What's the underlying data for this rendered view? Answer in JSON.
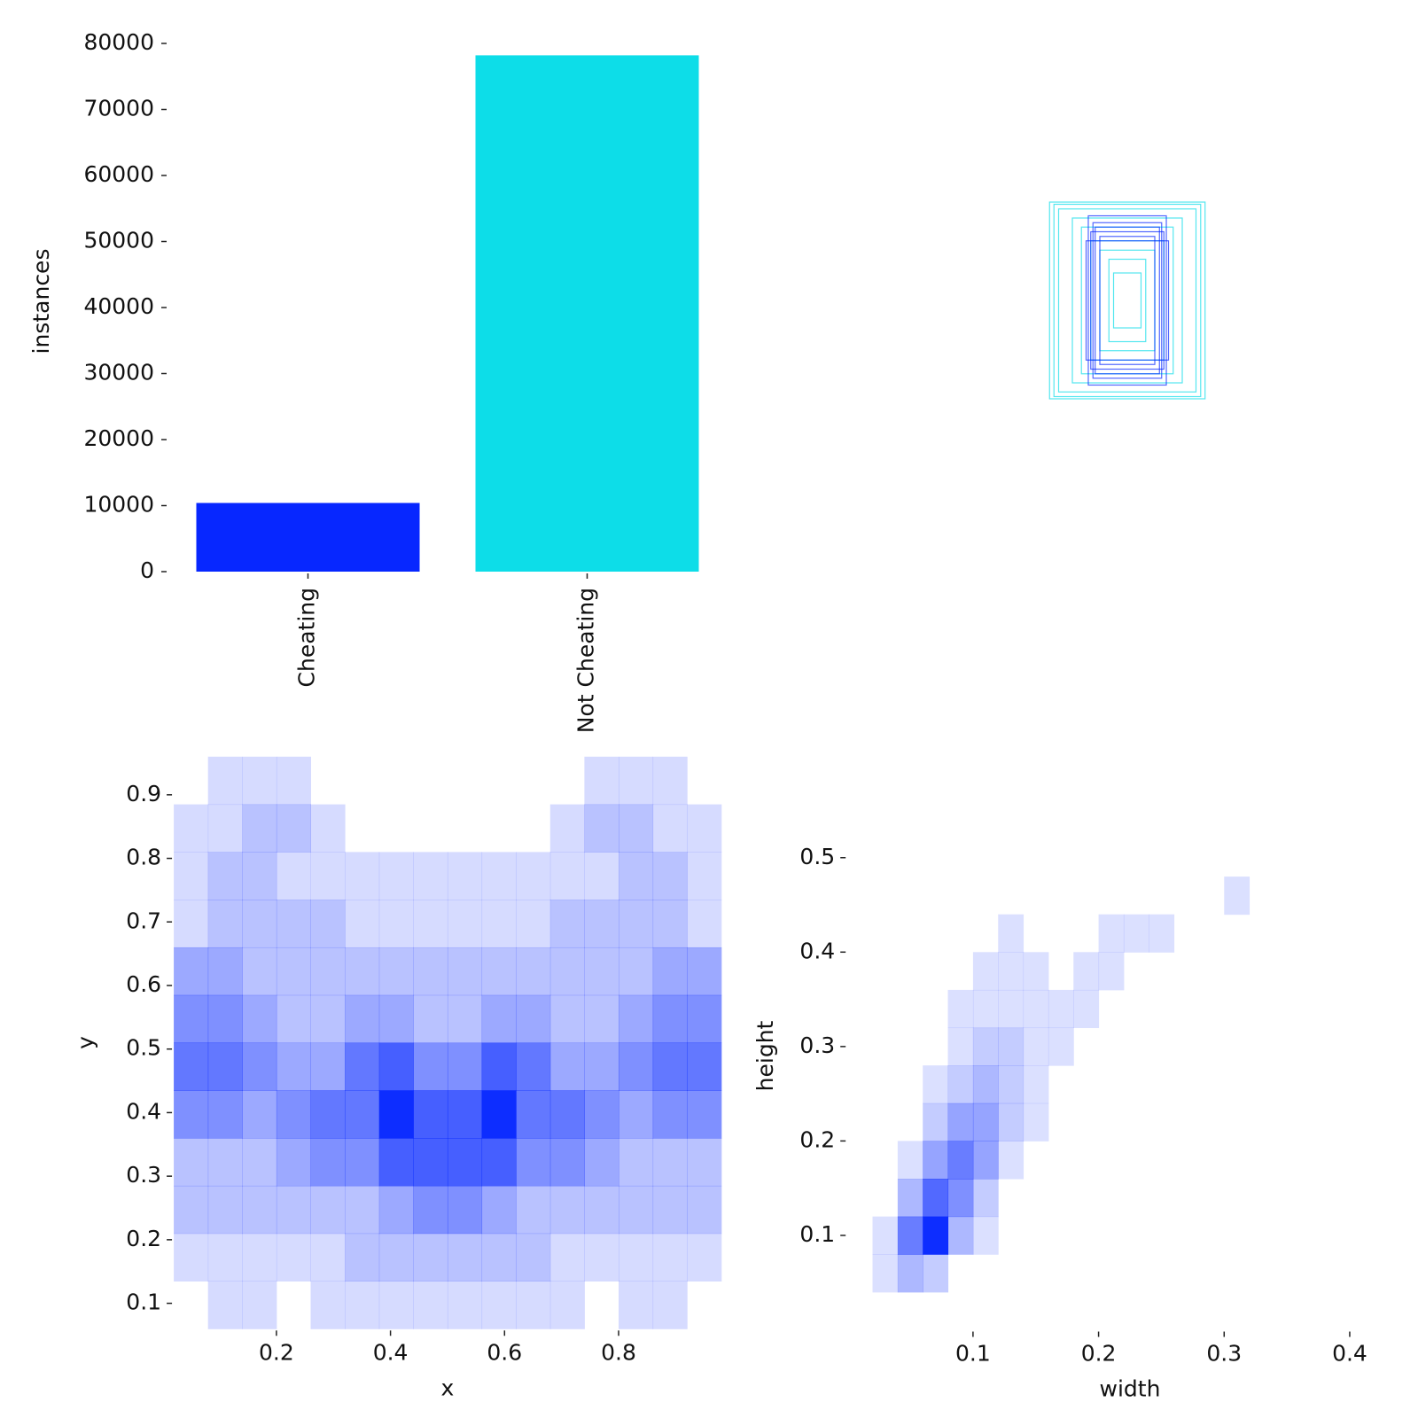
{
  "chart_data": [
    {
      "type": "bar",
      "ylabel": "instances",
      "categories": [
        "Cheating",
        "Not Cheating"
      ],
      "values": [
        10400,
        78200
      ],
      "colors": [
        "#0727ff",
        "#0ddde8"
      ],
      "ylim": [
        0,
        80000
      ],
      "yticks": [
        0,
        10000,
        20000,
        30000,
        40000,
        50000,
        60000,
        70000,
        80000
      ]
    },
    {
      "type": "boxes",
      "colors": [
        "#0727ff",
        "#0ddde8"
      ],
      "boxes": [
        {
          "class": 1,
          "w": 0.283,
          "h": 0.358
        },
        {
          "class": 1,
          "w": 0.267,
          "h": 0.35
        },
        {
          "class": 1,
          "w": 0.25,
          "h": 0.333
        },
        {
          "class": 1,
          "w": 0.2,
          "h": 0.3
        },
        {
          "class": 1,
          "w": 0.167,
          "h": 0.267
        },
        {
          "class": 1,
          "w": 0.133,
          "h": 0.217
        },
        {
          "class": 1,
          "w": 0.1,
          "h": 0.183
        },
        {
          "class": 1,
          "w": 0.067,
          "h": 0.15
        },
        {
          "class": 1,
          "w": 0.05,
          "h": 0.1
        },
        {
          "class": 0,
          "w": 0.142,
          "h": 0.308
        },
        {
          "class": 0,
          "w": 0.125,
          "h": 0.283
        },
        {
          "class": 0,
          "w": 0.117,
          "h": 0.267
        },
        {
          "class": 0,
          "w": 0.133,
          "h": 0.25
        },
        {
          "class": 0,
          "w": 0.1,
          "h": 0.233
        },
        {
          "class": 0,
          "w": 0.15,
          "h": 0.217
        }
      ]
    },
    {
      "type": "hist2d",
      "xlabel": "x",
      "ylabel": "y",
      "color": "#0022ff",
      "xlim": [
        0.02,
        0.98
      ],
      "ylim": [
        0.06,
        0.96
      ],
      "xticks": [
        0.2,
        0.4,
        0.6,
        0.8
      ],
      "yticks": [
        0.1,
        0.2,
        0.3,
        0.4,
        0.5,
        0.6,
        0.7,
        0.8,
        0.9
      ],
      "xbins": [
        0.02,
        0.08,
        0.14,
        0.2,
        0.26,
        0.32,
        0.38,
        0.44,
        0.5,
        0.56,
        0.62,
        0.68,
        0.74,
        0.8,
        0.86,
        0.92,
        0.98
      ],
      "ybins": [
        0.06,
        0.135,
        0.21,
        0.285,
        0.36,
        0.435,
        0.51,
        0.585,
        0.66,
        0.735,
        0.81,
        0.885,
        0.96
      ],
      "counts": [
        [
          0,
          1,
          1,
          0,
          1,
          1,
          1,
          1,
          1,
          1,
          1,
          1,
          0,
          1,
          1,
          0
        ],
        [
          1,
          1,
          1,
          1,
          1,
          2,
          2,
          2,
          2,
          2,
          2,
          1,
          1,
          1,
          1,
          1
        ],
        [
          2,
          2,
          2,
          2,
          2,
          2,
          3,
          4,
          4,
          3,
          2,
          2,
          2,
          2,
          2,
          2
        ],
        [
          2,
          2,
          2,
          3,
          4,
          4,
          6,
          6,
          6,
          6,
          4,
          4,
          3,
          2,
          2,
          2
        ],
        [
          4,
          4,
          3,
          4,
          5,
          5,
          8,
          6,
          6,
          8,
          5,
          5,
          4,
          3,
          4,
          4
        ],
        [
          5,
          5,
          4,
          3,
          3,
          5,
          6,
          4,
          4,
          6,
          5,
          3,
          3,
          4,
          5,
          5
        ],
        [
          4,
          4,
          3,
          2,
          2,
          3,
          3,
          2,
          2,
          3,
          3,
          2,
          2,
          3,
          4,
          4
        ],
        [
          3,
          3,
          2,
          2,
          2,
          2,
          2,
          2,
          2,
          2,
          2,
          2,
          2,
          2,
          3,
          3
        ],
        [
          1,
          2,
          2,
          2,
          2,
          1,
          1,
          1,
          1,
          1,
          1,
          2,
          2,
          2,
          2,
          1
        ],
        [
          1,
          2,
          2,
          1,
          1,
          1,
          1,
          1,
          1,
          1,
          1,
          1,
          1,
          2,
          2,
          1
        ],
        [
          1,
          1,
          2,
          2,
          1,
          0,
          0,
          0,
          0,
          0,
          0,
          1,
          2,
          2,
          1,
          1
        ],
        [
          0,
          1,
          1,
          1,
          0,
          0,
          0,
          0,
          0,
          0,
          0,
          0,
          1,
          1,
          1,
          0
        ]
      ]
    },
    {
      "type": "hist2d",
      "xlabel": "width",
      "ylabel": "height",
      "color": "#0022ff",
      "xlim": [
        0,
        0.45
      ],
      "ylim": [
        0,
        0.58
      ],
      "xticks": [
        0.1,
        0.2,
        0.3,
        0.4
      ],
      "yticks": [
        0.1,
        0.2,
        0.3,
        0.4,
        0.5
      ],
      "xbins": [
        0.02,
        0.04,
        0.06,
        0.08,
        0.1,
        0.12,
        0.14,
        0.16,
        0.18,
        0.2,
        0.22,
        0.24,
        0.26,
        0.28,
        0.3,
        0.32,
        0.34
      ],
      "ybins": [
        0.04,
        0.08,
        0.12,
        0.16,
        0.2,
        0.24,
        0.28,
        0.32,
        0.36,
        0.4,
        0.44,
        0.48,
        0.52
      ],
      "counts": [
        [
          1,
          3,
          2,
          0,
          0,
          0,
          0,
          0,
          0,
          0,
          0,
          0,
          0,
          0,
          0,
          0
        ],
        [
          1,
          6,
          10,
          3,
          1,
          0,
          0,
          0,
          0,
          0,
          0,
          0,
          0,
          0,
          0,
          0
        ],
        [
          0,
          3,
          7,
          5,
          2,
          0,
          0,
          0,
          0,
          0,
          0,
          0,
          0,
          0,
          0,
          0
        ],
        [
          0,
          1,
          4,
          6,
          4,
          1,
          0,
          0,
          0,
          0,
          0,
          0,
          0,
          0,
          0,
          0
        ],
        [
          0,
          0,
          2,
          4,
          4,
          2,
          1,
          0,
          0,
          0,
          0,
          0,
          0,
          0,
          0,
          0
        ],
        [
          0,
          0,
          1,
          2,
          3,
          2,
          1,
          0,
          0,
          0,
          0,
          0,
          0,
          0,
          0,
          0
        ],
        [
          0,
          0,
          0,
          1,
          2,
          2,
          1,
          1,
          0,
          0,
          0,
          0,
          0,
          0,
          0,
          0
        ],
        [
          0,
          0,
          0,
          1,
          1,
          1,
          1,
          1,
          1,
          0,
          0,
          0,
          0,
          0,
          0,
          0
        ],
        [
          0,
          0,
          0,
          0,
          1,
          1,
          1,
          0,
          1,
          1,
          0,
          0,
          0,
          0,
          0,
          0
        ],
        [
          0,
          0,
          0,
          0,
          0,
          1,
          0,
          0,
          0,
          1,
          1,
          1,
          0,
          0,
          0,
          0
        ],
        [
          0,
          0,
          0,
          0,
          0,
          0,
          0,
          0,
          0,
          0,
          0,
          0,
          0,
          0,
          1,
          0
        ],
        [
          0,
          0,
          0,
          0,
          0,
          0,
          0,
          0,
          0,
          0,
          0,
          0,
          0,
          0,
          0,
          0
        ]
      ]
    }
  ]
}
